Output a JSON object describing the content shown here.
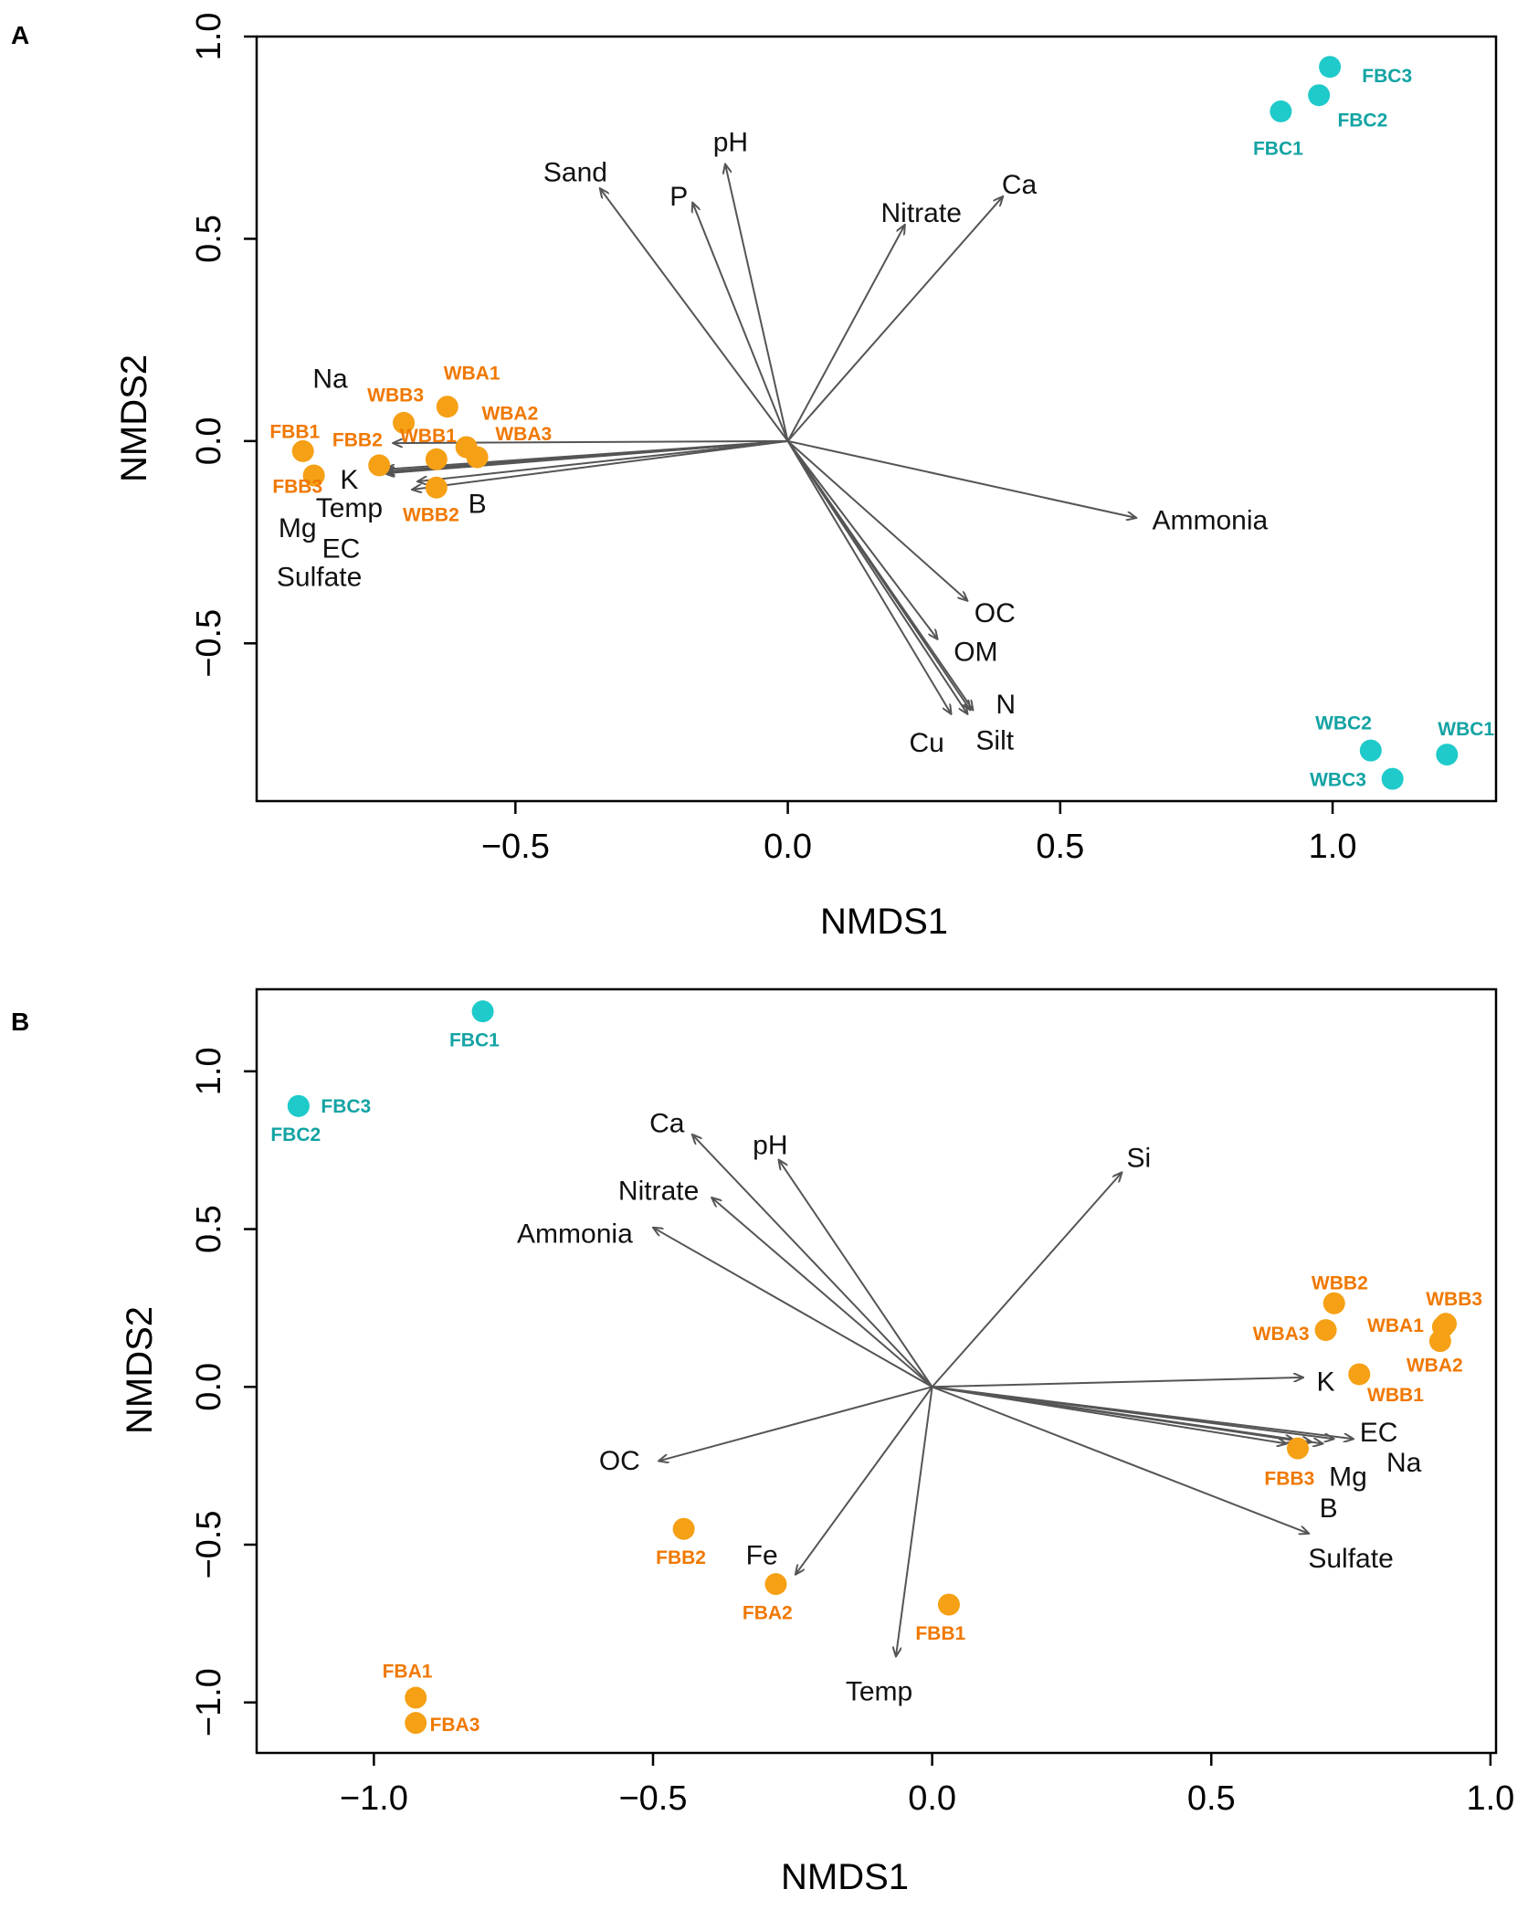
{
  "colors": {
    "orange": "#F5A015",
    "orange_label": "#F07800",
    "cyan": "#1FCACA",
    "cyan_label": "#14A3A3",
    "arrow": "#555555"
  },
  "chart_data": [
    {
      "type": "scatter",
      "panel": "A",
      "xlabel": "NMDS1",
      "ylabel": "NMDS2",
      "xlim": [
        -0.975,
        1.3
      ],
      "ylim": [
        -0.89,
        1.0
      ],
      "xticks": [
        -0.5,
        0.0,
        0.5,
        1.0
      ],
      "xtick_labels": [
        "−0.5",
        "0.0",
        "0.5",
        "1.0"
      ],
      "yticks": [
        -0.5,
        0.0,
        0.5,
        1.0
      ],
      "ytick_labels": [
        "−0.5",
        "0.0",
        "0.5",
        "1.0"
      ],
      "series": [
        {
          "name": "orange",
          "points": [
            {
              "label": "FBB1",
              "x": -0.89,
              "y": -0.025,
              "lx": -0.905,
              "ly": 0.02
            },
            {
              "label": "FBB3",
              "x": -0.87,
              "y": -0.085,
              "lx": -0.9,
              "ly": -0.115
            },
            {
              "label": "FBB2",
              "x": -0.75,
              "y": -0.06,
              "lx": -0.79,
              "ly": 0.0
            },
            {
              "label": "WBB3",
              "x": -0.705,
              "y": 0.045,
              "lx": -0.72,
              "ly": 0.11
            },
            {
              "label": "WBA1",
              "x": -0.625,
              "y": 0.085,
              "lx": -0.58,
              "ly": 0.165
            },
            {
              "label": "WBA2",
              "x": -0.59,
              "y": -0.015,
              "lx": -0.51,
              "ly": 0.065
            },
            {
              "label": "WBB1",
              "x": -0.645,
              "y": -0.045,
              "lx": -0.66,
              "ly": 0.01
            },
            {
              "label": "WBA3",
              "x": -0.57,
              "y": -0.04,
              "lx": -0.485,
              "ly": 0.015
            },
            {
              "label": "WBB2",
              "x": -0.645,
              "y": -0.115,
              "lx": -0.655,
              "ly": -0.185
            }
          ]
        },
        {
          "name": "cyan",
          "points": [
            {
              "label": "FBC3",
              "x": 0.995,
              "y": 0.925,
              "lx": 1.1,
              "ly": 0.9
            },
            {
              "label": "FBC2",
              "x": 0.975,
              "y": 0.855,
              "lx": 1.055,
              "ly": 0.79
            },
            {
              "label": "FBC1",
              "x": 0.905,
              "y": 0.815,
              "lx": 0.9,
              "ly": 0.72
            },
            {
              "label": "WBC2",
              "x": 1.07,
              "y": -0.765,
              "lx": 1.02,
              "ly": -0.7
            },
            {
              "label": "WBC1",
              "x": 1.21,
              "y": -0.775,
              "lx": 1.245,
              "ly": -0.715
            },
            {
              "label": "WBC3",
              "x": 1.11,
              "y": -0.835,
              "lx": 1.01,
              "ly": -0.84
            }
          ]
        }
      ],
      "vectors": [
        {
          "name": "Sand",
          "x": -0.345,
          "y": 0.625,
          "lx": -0.39,
          "ly": 0.66
        },
        {
          "name": "P",
          "x": -0.175,
          "y": 0.59,
          "lx": -0.2,
          "ly": 0.6
        },
        {
          "name": "pH",
          "x": -0.115,
          "y": 0.685,
          "lx": -0.105,
          "ly": 0.735
        },
        {
          "name": "Nitrate",
          "x": 0.215,
          "y": 0.535,
          "lx": 0.245,
          "ly": 0.56
        },
        {
          "name": "Ca",
          "x": 0.395,
          "y": 0.605,
          "lx": 0.425,
          "ly": 0.63
        },
        {
          "name": "Na",
          "x": -0.725,
          "y": -0.005,
          "lx": -0.84,
          "ly": 0.15
        },
        {
          "name": "K",
          "x": -0.74,
          "y": -0.08,
          "lx": -0.805,
          "ly": -0.1
        },
        {
          "name": "Temp",
          "x": -0.74,
          "y": -0.075,
          "lx": -0.805,
          "ly": -0.17
        },
        {
          "name": "Mg",
          "x": -0.74,
          "y": -0.078,
          "lx": -0.9,
          "ly": -0.22
        },
        {
          "name": "EC",
          "x": -0.74,
          "y": -0.078,
          "lx": -0.82,
          "ly": -0.27
        },
        {
          "name": "Sulfate",
          "x": -0.74,
          "y": -0.078,
          "lx": -0.86,
          "ly": -0.34
        },
        {
          "name": "B",
          "x": -0.69,
          "y": -0.12,
          "lx": -0.57,
          "ly": -0.16
        },
        {
          "name": "Ammonia",
          "x": 0.64,
          "y": -0.19,
          "lx": 0.775,
          "ly": -0.2
        },
        {
          "name": "OC",
          "x": 0.33,
          "y": -0.395,
          "lx": 0.38,
          "ly": -0.43
        },
        {
          "name": "OM",
          "x": 0.275,
          "y": -0.49,
          "lx": 0.345,
          "ly": -0.525
        },
        {
          "name": "N",
          "x": 0.34,
          "y": -0.665,
          "lx": 0.4,
          "ly": -0.655
        },
        {
          "name": "Silt",
          "x": 0.33,
          "y": -0.675,
          "lx": 0.38,
          "ly": -0.745
        },
        {
          "name": "Cu",
          "x": 0.3,
          "y": -0.675,
          "lx": 0.255,
          "ly": -0.75
        },
        {
          "name": "extra1",
          "x": 0.335,
          "y": -0.665,
          "lx": null,
          "ly": null
        },
        {
          "name": "extra2",
          "x": -0.74,
          "y": -0.07,
          "lx": null,
          "ly": null
        },
        {
          "name": "extra3",
          "x": -0.68,
          "y": -0.1,
          "lx": null,
          "ly": null
        }
      ]
    },
    {
      "type": "scatter",
      "panel": "B",
      "xlabel": "NMDS1",
      "ylabel": "NMDS2",
      "xlim": [
        -1.21,
        1.01
      ],
      "ylim": [
        -1.16,
        1.26
      ],
      "xticks": [
        -1.0,
        -0.5,
        0.0,
        0.5,
        1.0
      ],
      "xtick_labels": [
        "−1.0",
        "−0.5",
        "0.0",
        "0.5",
        "1.0"
      ],
      "yticks": [
        -1.0,
        -0.5,
        0.0,
        0.5,
        1.0
      ],
      "ytick_labels": [
        "−1.0",
        "−0.5",
        "0.0",
        "0.5",
        "1.0"
      ],
      "series": [
        {
          "name": "cyan",
          "points": [
            {
              "label": "FBC1",
              "x": -0.805,
              "y": 1.19,
              "lx": -0.82,
              "ly": 1.095
            },
            {
              "label": "FBC3",
              "x": -1.135,
              "y": 0.89,
              "lx": -1.05,
              "ly": 0.885
            },
            {
              "label": "FBC2",
              "x": -1.135,
              "y": 0.89,
              "lx": -1.14,
              "ly": 0.795
            }
          ]
        },
        {
          "name": "orange",
          "points": [
            {
              "label": "WBB2",
              "x": 0.72,
              "y": 0.265,
              "lx": 0.73,
              "ly": 0.325
            },
            {
              "label": "WBB3",
              "x": 0.92,
              "y": 0.2,
              "lx": 0.935,
              "ly": 0.275
            },
            {
              "label": "WBA1",
              "x": 0.915,
              "y": 0.19,
              "lx": 0.83,
              "ly": 0.19
            },
            {
              "label": "WBA3",
              "x": 0.705,
              "y": 0.18,
              "lx": 0.625,
              "ly": 0.165
            },
            {
              "label": "WBA2",
              "x": 0.91,
              "y": 0.145,
              "lx": 0.9,
              "ly": 0.065
            },
            {
              "label": "WBB1",
              "x": 0.765,
              "y": 0.04,
              "lx": 0.83,
              "ly": -0.03
            },
            {
              "label": "FBB3",
              "x": 0.655,
              "y": -0.195,
              "lx": 0.64,
              "ly": -0.295
            },
            {
              "label": "FBB2",
              "x": -0.445,
              "y": -0.45,
              "lx": -0.45,
              "ly": -0.545
            },
            {
              "label": "FBA2",
              "x": -0.28,
              "y": -0.625,
              "lx": -0.295,
              "ly": -0.72
            },
            {
              "label": "FBB1",
              "x": 0.03,
              "y": -0.69,
              "lx": 0.015,
              "ly": -0.785
            },
            {
              "label": "FBA1",
              "x": -0.925,
              "y": -0.985,
              "lx": -0.94,
              "ly": -0.905
            },
            {
              "label": "FBA3",
              "x": -0.925,
              "y": -1.065,
              "lx": -0.855,
              "ly": -1.075
            }
          ]
        }
      ],
      "vectors": [
        {
          "name": "Ca",
          "x": -0.43,
          "y": 0.8,
          "lx": -0.475,
          "ly": 0.83
        },
        {
          "name": "pH",
          "x": -0.275,
          "y": 0.72,
          "lx": -0.29,
          "ly": 0.76
        },
        {
          "name": "Nitrate",
          "x": -0.395,
          "y": 0.6,
          "lx": -0.49,
          "ly": 0.615
        },
        {
          "name": "Ammonia",
          "x": -0.5,
          "y": 0.505,
          "lx": -0.64,
          "ly": 0.48
        },
        {
          "name": "Si",
          "x": 0.34,
          "y": 0.68,
          "lx": 0.37,
          "ly": 0.72
        },
        {
          "name": "K",
          "x": 0.665,
          "y": 0.03,
          "lx": 0.705,
          "ly": 0.01
        },
        {
          "name": "EC",
          "x": 0.755,
          "y": -0.165,
          "lx": 0.8,
          "ly": -0.15
        },
        {
          "name": "Na",
          "x": 0.7,
          "y": -0.18,
          "lx": 0.845,
          "ly": -0.245
        },
        {
          "name": "Mg",
          "x": 0.65,
          "y": -0.17,
          "lx": 0.745,
          "ly": -0.29
        },
        {
          "name": "B",
          "x": 0.635,
          "y": -0.18,
          "lx": 0.71,
          "ly": -0.39
        },
        {
          "name": "Sulfate",
          "x": 0.675,
          "y": -0.465,
          "lx": 0.75,
          "ly": -0.55
        },
        {
          "name": "Fe",
          "x": -0.245,
          "y": -0.595,
          "lx": -0.305,
          "ly": -0.54
        },
        {
          "name": "Temp",
          "x": -0.065,
          "y": -0.855,
          "lx": -0.095,
          "ly": -0.97
        },
        {
          "name": "OC",
          "x": -0.49,
          "y": -0.235,
          "lx": -0.56,
          "ly": -0.24
        },
        {
          "name": "extra1",
          "x": 0.72,
          "y": -0.165,
          "lx": null,
          "ly": null
        },
        {
          "name": "extra2",
          "x": 0.68,
          "y": -0.175,
          "lx": null,
          "ly": null
        }
      ]
    }
  ]
}
